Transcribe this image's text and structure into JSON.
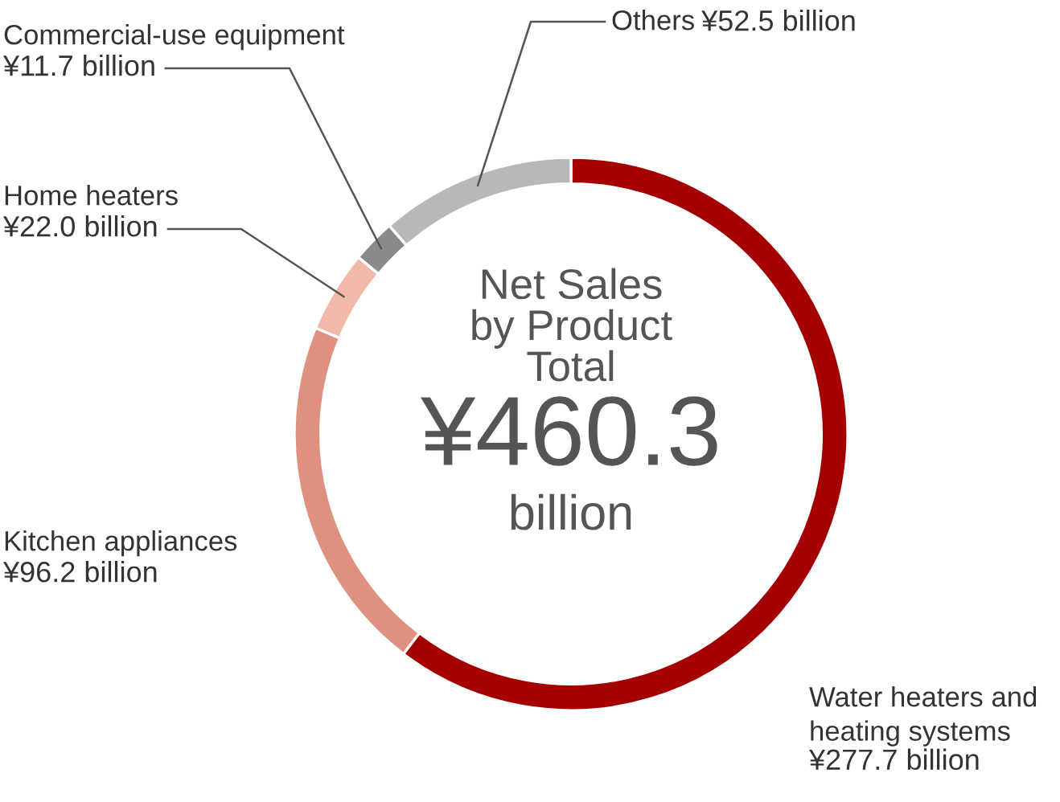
{
  "chart_data": {
    "type": "donut",
    "title": "Net Sales\nby Product\nTotal",
    "categories": [
      "Water heaters and\nheating systems",
      "Kitchen appliances",
      "Home heaters",
      "Commercial-use equipment",
      "Others"
    ],
    "values": [
      277.7,
      96.2,
      22.0,
      11.7,
      52.5
    ],
    "colors": [
      "#a50000",
      "#e0907e",
      "#f2b8a8",
      "#8a8a8a",
      "#b8b8b8"
    ],
    "value_labels": [
      "¥277.7 billion",
      "¥96.2 billion",
      "¥22.0 billion",
      "¥11.7 billion",
      "¥52.5 billion"
    ],
    "annotations": [
      "¥460.3",
      "billion"
    ]
  }
}
